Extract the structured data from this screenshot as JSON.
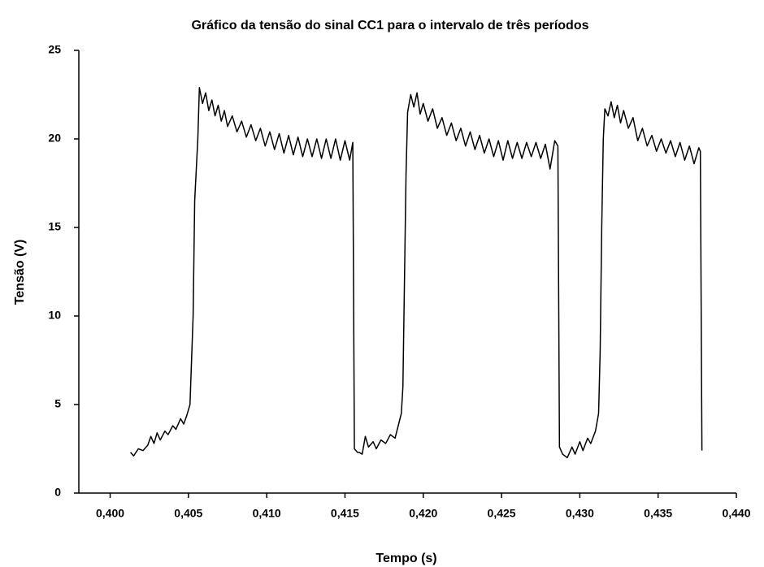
{
  "chart_data": {
    "type": "line",
    "title": "Gráfico da tensão do sinal CC1 para o intervalo de três períodos",
    "xlabel": "Tempo (s)",
    "ylabel": "Tensão (V)",
    "color": "#000000",
    "xlim": [
      0.398,
      0.44
    ],
    "ylim": [
      0,
      25
    ],
    "xticks": [
      {
        "value": 0.4,
        "label": "0,400"
      },
      {
        "value": 0.405,
        "label": "0,405"
      },
      {
        "value": 0.41,
        "label": "0,410"
      },
      {
        "value": 0.415,
        "label": "0,415"
      },
      {
        "value": 0.42,
        "label": "0,420"
      },
      {
        "value": 0.425,
        "label": "0,425"
      },
      {
        "value": 0.43,
        "label": "0,430"
      },
      {
        "value": 0.435,
        "label": "0,435"
      },
      {
        "value": 0.44,
        "label": "0,440"
      }
    ],
    "yticks": [
      0,
      5,
      10,
      15,
      20,
      25
    ],
    "x": [
      0.4013,
      0.4015,
      0.4018,
      0.4021,
      0.4024,
      0.4026,
      0.4028,
      0.403,
      0.4032,
      0.4035,
      0.4037,
      0.404,
      0.4042,
      0.4045,
      0.4047,
      0.4049,
      0.4051,
      0.4053,
      0.4054,
      0.4056,
      0.4057,
      0.4059,
      0.4061,
      0.4063,
      0.4065,
      0.4067,
      0.4069,
      0.4071,
      0.4073,
      0.4075,
      0.4078,
      0.4081,
      0.4084,
      0.4087,
      0.409,
      0.4093,
      0.4096,
      0.4099,
      0.4102,
      0.4105,
      0.4108,
      0.4111,
      0.4114,
      0.4117,
      0.412,
      0.4123,
      0.4126,
      0.4129,
      0.4132,
      0.4135,
      0.4138,
      0.4141,
      0.4144,
      0.4147,
      0.415,
      0.4153,
      0.4155,
      0.4156,
      0.4158,
      0.4159,
      0.4161,
      0.4163,
      0.4165,
      0.4168,
      0.417,
      0.4173,
      0.4176,
      0.4179,
      0.4182,
      0.4184,
      0.4186,
      0.4187,
      0.4188,
      0.4189,
      0.419,
      0.4192,
      0.4194,
      0.4196,
      0.4198,
      0.42,
      0.4203,
      0.4206,
      0.4209,
      0.4212,
      0.4215,
      0.4218,
      0.4221,
      0.4224,
      0.4227,
      0.423,
      0.4233,
      0.4236,
      0.4239,
      0.4242,
      0.4245,
      0.4248,
      0.4251,
      0.4254,
      0.4257,
      0.426,
      0.4263,
      0.4266,
      0.4269,
      0.4272,
      0.4275,
      0.4278,
      0.4281,
      0.4284,
      0.4286,
      0.4287,
      0.4289,
      0.4292,
      0.4295,
      0.4297,
      0.43,
      0.4302,
      0.4305,
      0.4307,
      0.431,
      0.4312,
      0.4313,
      0.4314,
      0.4315,
      0.4316,
      0.4318,
      0.432,
      0.4322,
      0.4324,
      0.4326,
      0.4328,
      0.4331,
      0.4334,
      0.4337,
      0.434,
      0.4343,
      0.4346,
      0.4349,
      0.4352,
      0.4355,
      0.4358,
      0.4361,
      0.4364,
      0.4367,
      0.437,
      0.4373,
      0.4376,
      0.4377,
      0.4378
    ],
    "values": [
      2.3,
      2.1,
      2.5,
      2.4,
      2.7,
      3.2,
      2.8,
      3.4,
      3.0,
      3.5,
      3.3,
      3.8,
      3.6,
      4.2,
      3.9,
      4.4,
      5.0,
      10,
      16.5,
      20,
      22.9,
      22.0,
      22.6,
      21.6,
      22.2,
      21.3,
      21.9,
      21.0,
      21.6,
      20.7,
      21.3,
      20.4,
      21.0,
      20.1,
      20.8,
      19.9,
      20.6,
      19.6,
      20.4,
      19.4,
      20.3,
      19.2,
      20.2,
      19.1,
      20.1,
      19.0,
      20.0,
      19.0,
      20.0,
      18.9,
      20.0,
      18.9,
      20.0,
      18.8,
      19.9,
      18.8,
      19.8,
      2.5,
      2.3,
      2.3,
      2.2,
      3.2,
      2.6,
      2.9,
      2.5,
      3.0,
      2.8,
      3.3,
      3.1,
      3.8,
      4.5,
      6,
      12,
      18,
      21.5,
      22.5,
      21.8,
      22.6,
      21.4,
      22.0,
      21.0,
      21.7,
      20.6,
      21.2,
      20.2,
      20.9,
      19.9,
      20.6,
      19.6,
      20.4,
      19.4,
      20.2,
      19.2,
      20.0,
      19.0,
      19.9,
      18.8,
      19.9,
      18.9,
      19.8,
      18.9,
      19.8,
      19.0,
      19.8,
      18.9,
      19.7,
      18.3,
      19.9,
      19.6,
      2.6,
      2.2,
      2.0,
      2.6,
      2.2,
      2.9,
      2.4,
      3.1,
      2.8,
      3.5,
      4.5,
      8,
      15,
      20,
      21.7,
      21.3,
      22.1,
      21.2,
      21.9,
      20.9,
      21.6,
      20.6,
      21.2,
      19.9,
      20.6,
      19.6,
      20.2,
      19.3,
      20.0,
      19.2,
      19.9,
      19.0,
      19.8,
      18.8,
      19.6,
      18.6,
      19.5,
      19.3,
      2.4
    ]
  }
}
